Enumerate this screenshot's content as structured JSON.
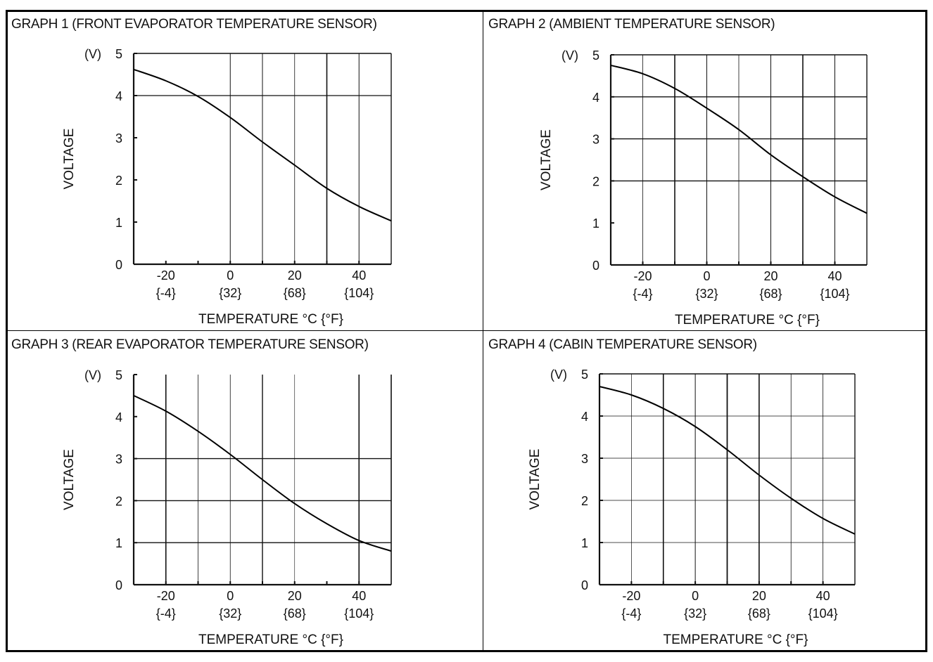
{
  "chart_data": [
    {
      "type": "line",
      "title": "GRAPH 1 (FRONT EVAPORATOR TEMPERATURE SENSOR)",
      "xlabel": "TEMPERATURE   °C {°F}",
      "ylabel": "VOLTAGE",
      "yunit": "(V)",
      "xlim": [
        -30,
        50
      ],
      "ylim": [
        0,
        5
      ],
      "x_ticks": [
        {
          "c": "-20",
          "f": "{-4}"
        },
        {
          "c": "0",
          "f": "{32}"
        },
        {
          "c": "20",
          "f": "{68}"
        },
        {
          "c": "40",
          "f": "{104}"
        }
      ],
      "y_ticks": [
        "0",
        "1",
        "2",
        "3",
        "4",
        "5"
      ],
      "grid": true,
      "series": [
        {
          "name": "voltage",
          "x": [
            -30,
            -20,
            -10,
            0,
            10,
            20,
            30,
            40,
            50
          ],
          "y": [
            4.62,
            4.35,
            3.98,
            3.48,
            2.9,
            2.35,
            1.8,
            1.37,
            1.03
          ]
        }
      ]
    },
    {
      "type": "line",
      "title": "GRAPH 2 (AMBIENT TEMPERATURE SENSOR)",
      "xlabel": "TEMPERATURE   °C {°F}",
      "ylabel": "VOLTAGE",
      "yunit": "(V)",
      "xlim": [
        -30,
        50
      ],
      "ylim": [
        0,
        5
      ],
      "x_ticks": [
        {
          "c": "-20",
          "f": "{-4}"
        },
        {
          "c": "0",
          "f": "{32}"
        },
        {
          "c": "20",
          "f": "{68}"
        },
        {
          "c": "40",
          "f": "{104}"
        }
      ],
      "y_ticks": [
        "0",
        "1",
        "2",
        "3",
        "4",
        "5"
      ],
      "grid": true,
      "series": [
        {
          "name": "voltage",
          "x": [
            -30,
            -20,
            -10,
            0,
            10,
            20,
            30,
            40,
            50
          ],
          "y": [
            4.75,
            4.55,
            4.2,
            3.73,
            3.22,
            2.62,
            2.1,
            1.62,
            1.23
          ]
        }
      ]
    },
    {
      "type": "line",
      "title": "GRAPH 3 (REAR EVAPORATOR TEMPERATURE SENSOR)",
      "xlabel": "TEMPERATURE   °C {°F}",
      "ylabel": "VOLTAGE",
      "yunit": "(V)",
      "xlim": [
        -30,
        50
      ],
      "ylim": [
        0,
        5
      ],
      "x_ticks": [
        {
          "c": "-20",
          "f": "{-4}"
        },
        {
          "c": "0",
          "f": "{32}"
        },
        {
          "c": "20",
          "f": "{68}"
        },
        {
          "c": "40",
          "f": "{104}"
        }
      ],
      "y_ticks": [
        "0",
        "1",
        "2",
        "3",
        "4",
        "5"
      ],
      "grid": true,
      "series": [
        {
          "name": "voltage",
          "x": [
            -30,
            -20,
            -10,
            0,
            10,
            20,
            30,
            40,
            50
          ],
          "y": [
            4.5,
            4.13,
            3.65,
            3.1,
            2.5,
            1.93,
            1.45,
            1.05,
            0.8
          ]
        }
      ]
    },
    {
      "type": "line",
      "title": "GRAPH 4 (CABIN TEMPERATURE SENSOR)",
      "xlabel": "TEMPERATURE   °C {°F}",
      "ylabel": "VOLTAGE",
      "yunit": "(V)",
      "xlim": [
        -30,
        50
      ],
      "ylim": [
        0,
        5
      ],
      "x_ticks": [
        {
          "c": "-20",
          "f": "{-4}"
        },
        {
          "c": "0",
          "f": "{32}"
        },
        {
          "c": "20",
          "f": "{68}"
        },
        {
          "c": "40",
          "f": "{104}"
        }
      ],
      "y_ticks": [
        "0",
        "1",
        "2",
        "3",
        "4",
        "5"
      ],
      "grid": true,
      "series": [
        {
          "name": "voltage",
          "x": [
            -30,
            -20,
            -10,
            0,
            10,
            20,
            30,
            40,
            50
          ],
          "y": [
            4.7,
            4.5,
            4.18,
            3.75,
            3.2,
            2.6,
            2.05,
            1.57,
            1.2
          ]
        }
      ]
    }
  ]
}
